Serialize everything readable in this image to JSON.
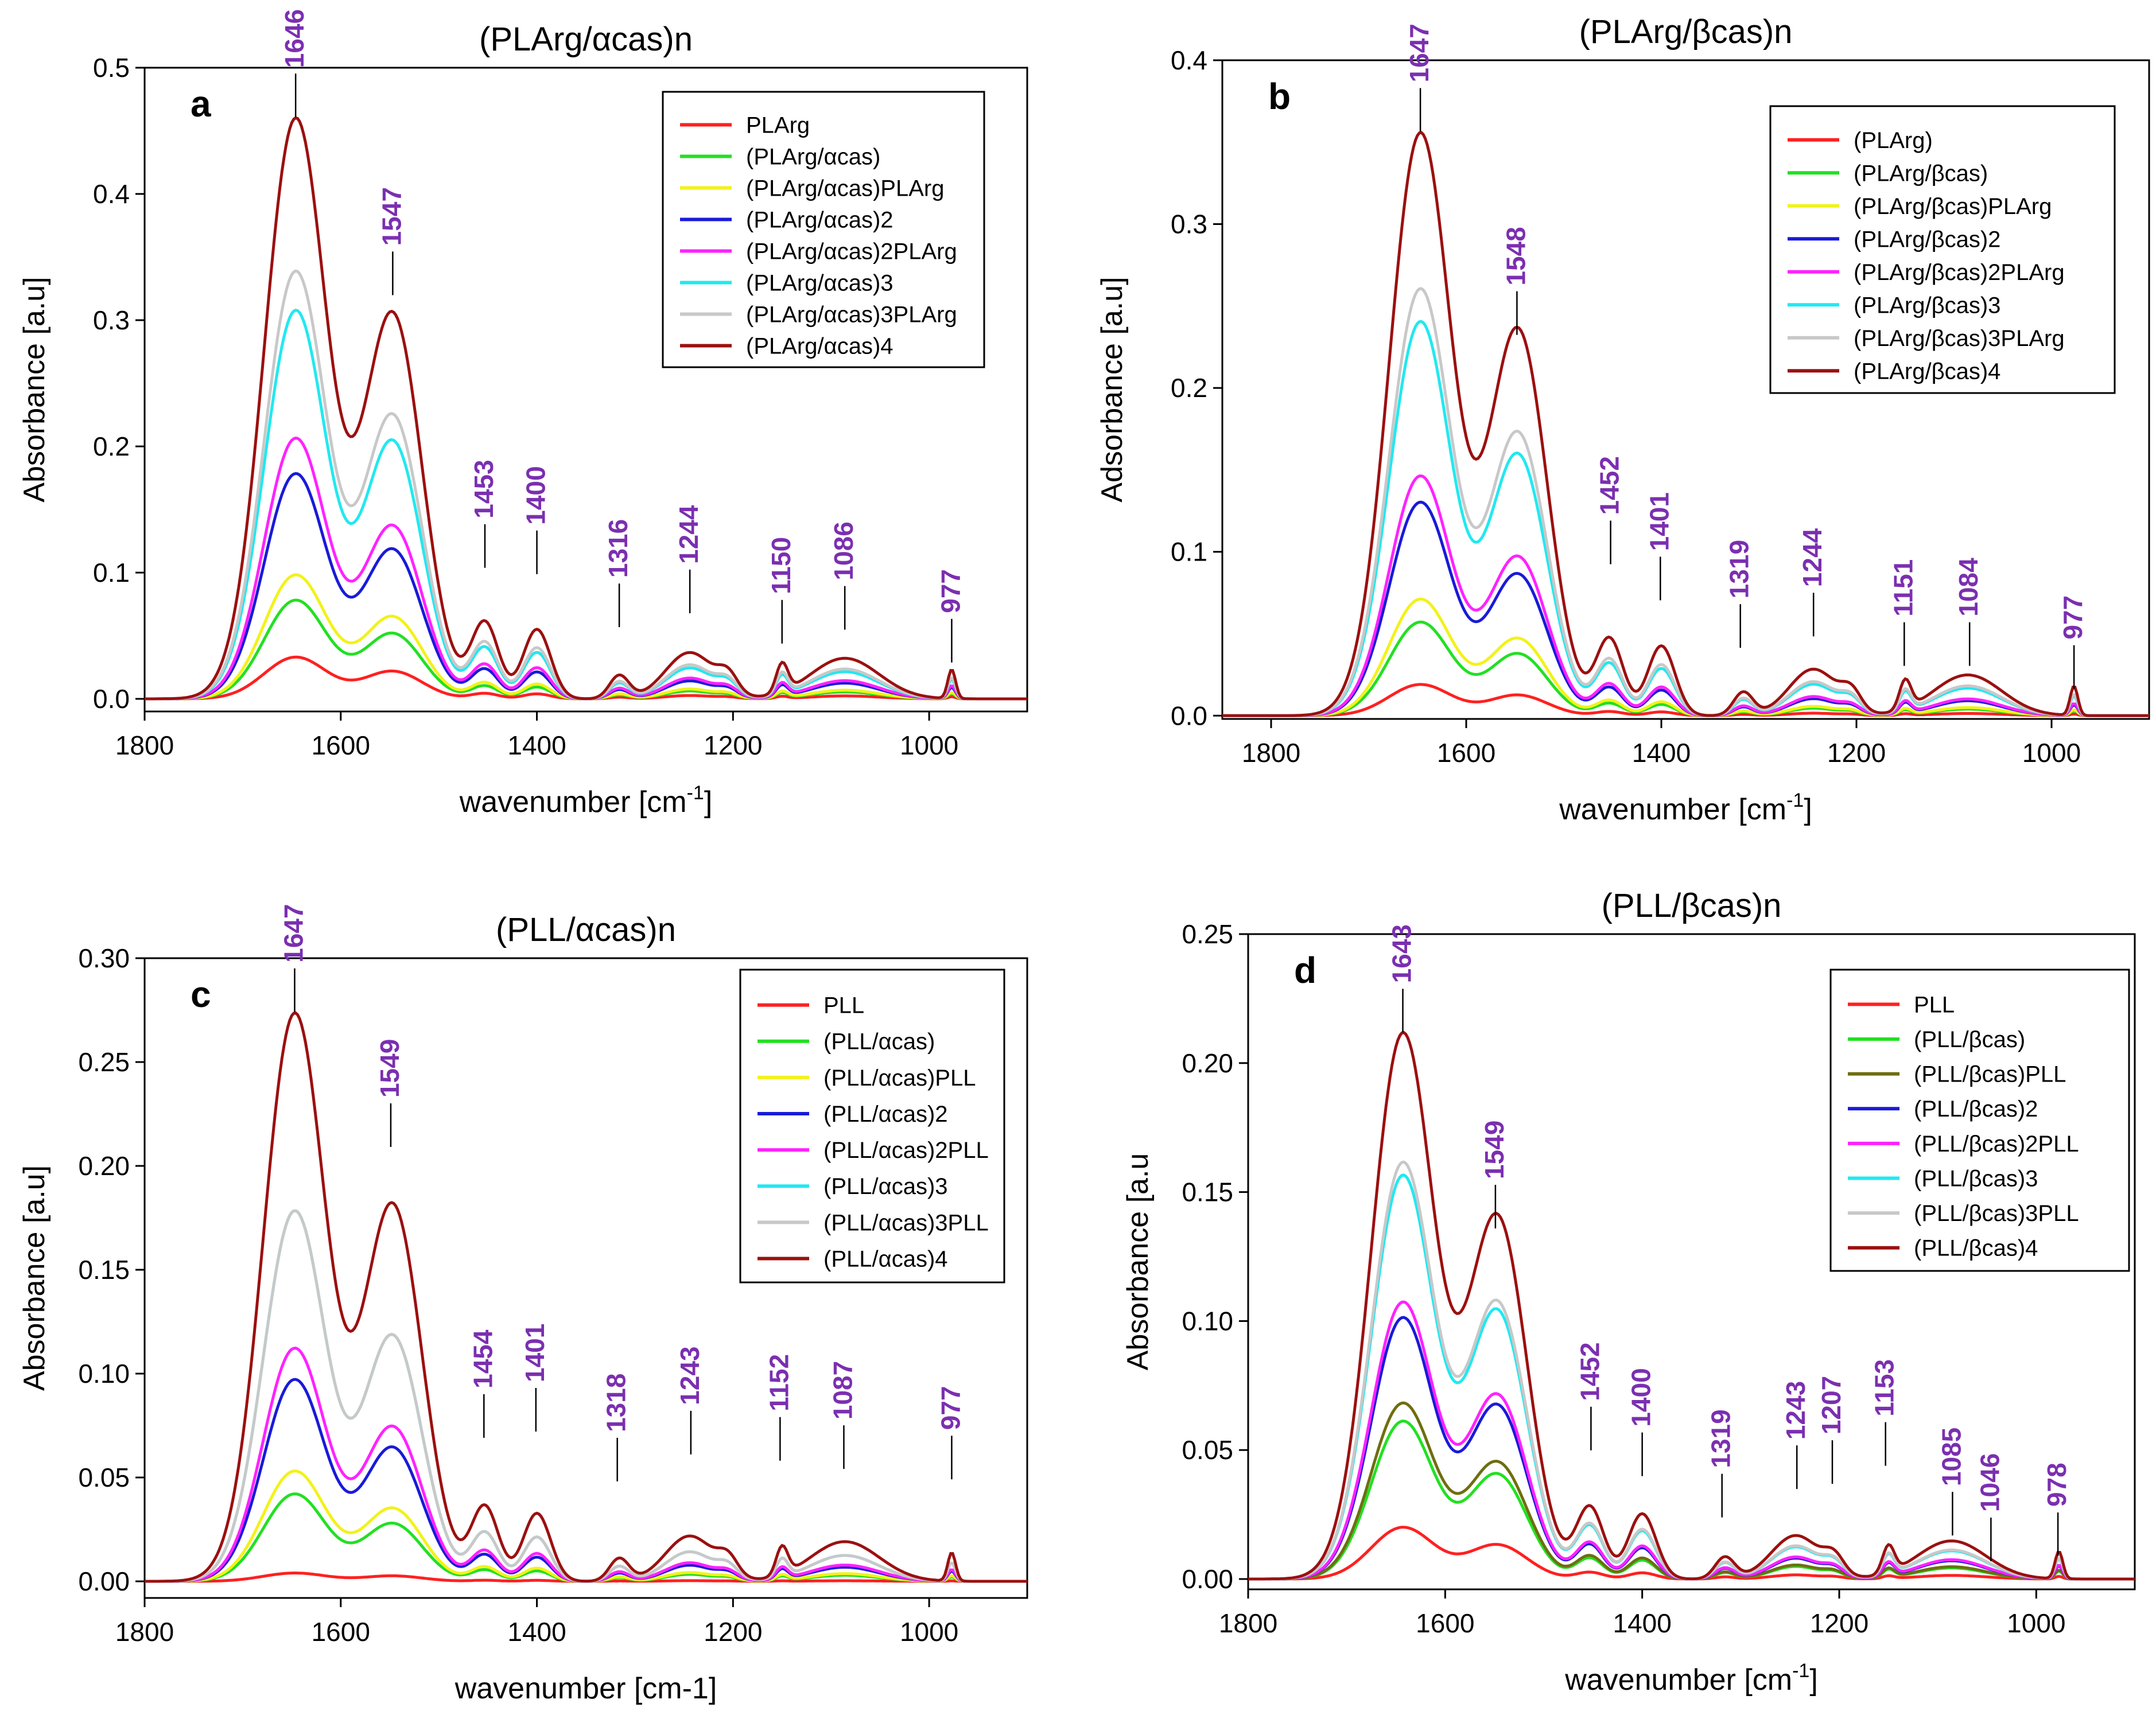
{
  "colors": {
    "peak_label": "#7b2fb0",
    "axis": "#000000",
    "series": [
      "#ff2020",
      "#22e022",
      "#f2f21a",
      "#1a1ad8",
      "#ff22ff",
      "#22e8f0",
      "#c8c8c8",
      "#9b1010"
    ],
    "series_panel_d": [
      "#ff2020",
      "#22e022",
      "#6e6e10",
      "#1a1ad8",
      "#ff22ff",
      "#22e8f0",
      "#c8c8c8",
      "#9b1010"
    ]
  },
  "chart_data": [
    {
      "type": "line",
      "panel": "a",
      "title": "(PLArg/αcas)n",
      "xlabel": "wavenumber [cm-1]",
      "xlabel_main": "wavenumber [cm",
      "xlabel_sup": "-1",
      "xlabel_end": "]",
      "ylabel": "Absorbance [a.u]",
      "xlim": [
        1800,
        900
      ],
      "ylim": [
        -0.01,
        0.5
      ],
      "xticks": [
        1800,
        1600,
        1400,
        1200,
        1000
      ],
      "yticks": [
        "0.0",
        "0.1",
        "0.2",
        "0.3",
        "0.4",
        "0.5"
      ],
      "legend_position": "top-right",
      "legend": [
        "PLArg",
        "(PLArg/αcas)",
        "(PLArg/αcas)PLArg",
        "(PLArg/αcas)2",
        "(PLArg/αcas)2PLArg",
        "(PLArg/αcas)3",
        "(PLArg/αcas)3PLArg",
        "(PLArg/αcas)4"
      ],
      "series_peak_heights": [
        0.033,
        0.078,
        0.098,
        0.178,
        0.206,
        0.307,
        0.338,
        0.459
      ],
      "peak_labels": [
        {
          "text": "1646",
          "x": 1646,
          "y": 0.459
        },
        {
          "text": "1547",
          "x": 1547,
          "y": 0.318
        },
        {
          "text": "1453",
          "x": 1453,
          "y": 0.102
        },
        {
          "text": "1400",
          "x": 1400,
          "y": 0.097
        },
        {
          "text": "1316",
          "x": 1316,
          "y": 0.055
        },
        {
          "text": "1244",
          "x": 1244,
          "y": 0.066
        },
        {
          "text": "1150",
          "x": 1150,
          "y": 0.042
        },
        {
          "text": "1086",
          "x": 1086,
          "y": 0.053
        },
        {
          "text": "977",
          "x": 977,
          "y": 0.027
        }
      ]
    },
    {
      "type": "line",
      "panel": "b",
      "title": "(PLArg/βcas)n",
      "xlabel": "wavenumber [cm-1]",
      "xlabel_main": "wavenumber [cm",
      "xlabel_sup": "-1",
      "xlabel_end": "]",
      "ylabel": "Adsorbance [a.u]",
      "xlim": [
        1850,
        900
      ],
      "ylim": [
        -0.002,
        0.4
      ],
      "xticks": [
        1800,
        1600,
        1400,
        1200,
        1000
      ],
      "yticks": [
        "0.0",
        "0.1",
        "0.2",
        "0.3",
        "0.4"
      ],
      "legend_position": "top-right",
      "legend": [
        "(PLArg)",
        "(PLArg/βcas)",
        "(PLArg/βcas)PLArg",
        "(PLArg/βcas)2",
        "(PLArg/βcas)2PLArg",
        "(PLArg/βcas)3",
        "(PLArg/βcas)3PLArg",
        "(PLArg/βcas)4"
      ],
      "series_peak_heights": [
        0.019,
        0.057,
        0.071,
        0.13,
        0.146,
        0.24,
        0.26,
        0.355
      ],
      "peak_labels": [
        {
          "text": "1647",
          "x": 1647,
          "y": 0.355
        },
        {
          "text": "1548",
          "x": 1548,
          "y": 0.231
        },
        {
          "text": "1452",
          "x": 1452,
          "y": 0.091
        },
        {
          "text": "1401",
          "x": 1401,
          "y": 0.069
        },
        {
          "text": "1319",
          "x": 1319,
          "y": 0.04
        },
        {
          "text": "1244",
          "x": 1244,
          "y": 0.047
        },
        {
          "text": "1151",
          "x": 1151,
          "y": 0.029
        },
        {
          "text": "1084",
          "x": 1084,
          "y": 0.029
        },
        {
          "text": "977",
          "x": 977,
          "y": 0.015
        }
      ]
    },
    {
      "type": "line",
      "panel": "c",
      "title": "(PLL/αcas)n",
      "xlabel": "wavenumber [cm-1]",
      "xlabel_main": "wavenumber [cm-1]",
      "xlabel_sup": "",
      "xlabel_end": "",
      "ylabel": "Absorbance [a.u]",
      "xlim": [
        1800,
        900
      ],
      "ylim": [
        -0.008,
        0.3
      ],
      "xticks": [
        1800,
        1600,
        1400,
        1200,
        1000
      ],
      "yticks": [
        "0.00",
        "0.05",
        "0.10",
        "0.15",
        "0.20",
        "0.25",
        "0.30"
      ],
      "legend_position": "top-right",
      "legend": [
        "PLL",
        "(PLL/αcas)",
        "(PLL/αcas)PLL",
        "(PLL/αcas)2",
        "(PLL/αcas)2PLL",
        "(PLL/αcas)3",
        "(PLL/αcas)3PLL",
        "(PLL/αcas)4"
      ],
      "series_peak_heights": [
        0.004,
        0.042,
        0.053,
        0.097,
        0.112,
        0.178,
        0.178,
        0.273
      ],
      "peak_labels": [
        {
          "text": "1647",
          "x": 1647,
          "y": 0.273
        },
        {
          "text": "1549",
          "x": 1549,
          "y": 0.208
        },
        {
          "text": "1454",
          "x": 1454,
          "y": 0.068
        },
        {
          "text": "1401",
          "x": 1401,
          "y": 0.071
        },
        {
          "text": "1318",
          "x": 1318,
          "y": 0.047
        },
        {
          "text": "1243",
          "x": 1243,
          "y": 0.06
        },
        {
          "text": "1152",
          "x": 1152,
          "y": 0.057
        },
        {
          "text": "1087",
          "x": 1087,
          "y": 0.053
        },
        {
          "text": "977",
          "x": 977,
          "y": 0.048
        }
      ]
    },
    {
      "type": "line",
      "panel": "d",
      "title": "(PLL/βcas)n",
      "xlabel": "wavenumber [cm-1]",
      "xlabel_main": "wavenumber [cm",
      "xlabel_sup": "-1",
      "xlabel_end": "]",
      "ylabel": "Absorbance [a.u",
      "xlim": [
        1800,
        900
      ],
      "ylim": [
        -0.004,
        0.25
      ],
      "xticks": [
        1800,
        1600,
        1400,
        1200,
        1000
      ],
      "yticks": [
        "0.00",
        "0.05",
        "0.10",
        "0.15",
        "0.20",
        "0.25"
      ],
      "legend_position": "top-right",
      "legend": [
        "PLL",
        "(PLL/βcas)",
        "(PLL/βcas)PLL",
        "(PLL/βcas)2",
        "(PLL/βcas)2PLL",
        "(PLL/βcas)3",
        "(PLL/βcas)3PLL",
        "(PLL/βcas)4"
      ],
      "series_peak_heights": [
        0.02,
        0.061,
        0.068,
        0.101,
        0.107,
        0.156,
        0.161,
        0.211
      ],
      "peak_labels": [
        {
          "text": "1643",
          "x": 1643,
          "y": 0.211
        },
        {
          "text": "1549",
          "x": 1549,
          "y": 0.135
        },
        {
          "text": "1452",
          "x": 1452,
          "y": 0.049
        },
        {
          "text": "1400",
          "x": 1400,
          "y": 0.039
        },
        {
          "text": "1319",
          "x": 1319,
          "y": 0.023
        },
        {
          "text": "1243",
          "x": 1243,
          "y": 0.034
        },
        {
          "text": "1207",
          "x": 1207,
          "y": 0.036
        },
        {
          "text": "1153",
          "x": 1153,
          "y": 0.043
        },
        {
          "text": "1085",
          "x": 1085,
          "y": 0.016
        },
        {
          "text": "1046",
          "x": 1046,
          "y": 0.006
        },
        {
          "text": "978",
          "x": 978,
          "y": 0.008
        }
      ]
    }
  ]
}
